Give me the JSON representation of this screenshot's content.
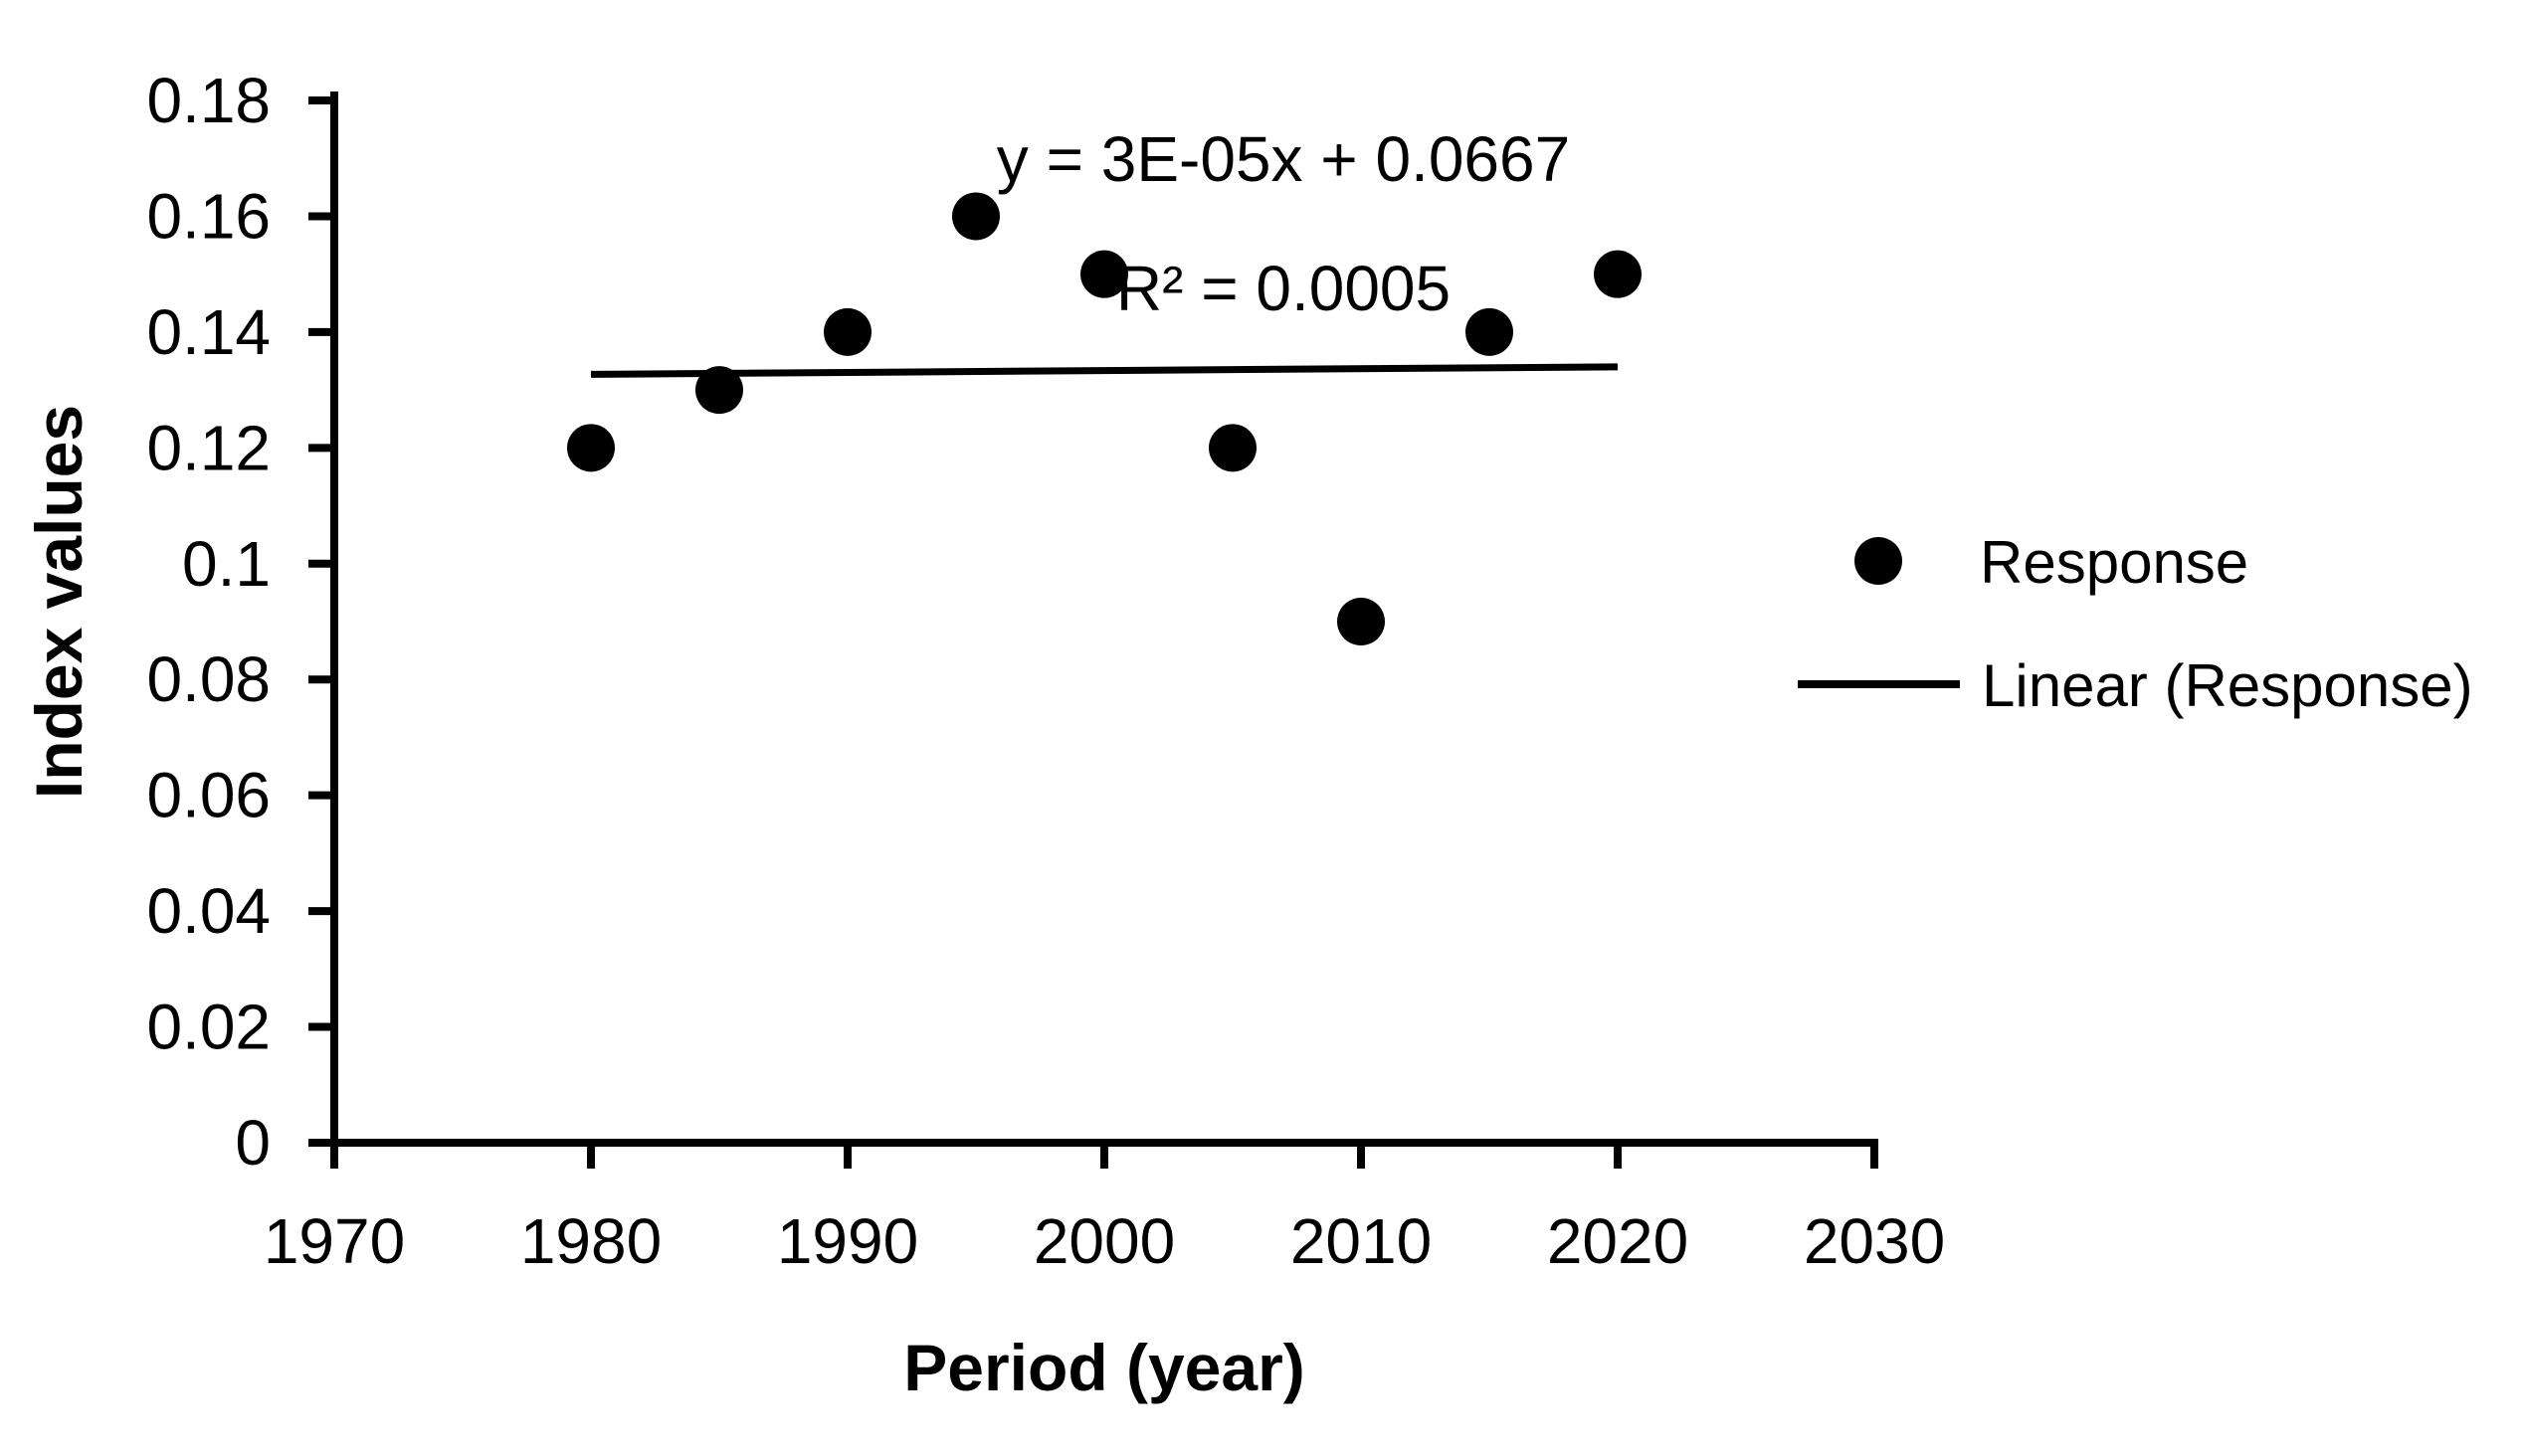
{
  "colors": {
    "foreground": "#000000",
    "background": "#ffffff"
  },
  "chart_data": {
    "type": "scatter",
    "title": "",
    "xlabel": "Period (year)",
    "ylabel": "Index values",
    "x": [
      1980,
      1985,
      1990,
      1995,
      2000,
      2005,
      2010,
      2015,
      2020
    ],
    "series": [
      {
        "name": "Response",
        "type": "scatter",
        "marker": "filled-circle",
        "color": "#000000",
        "values": [
          0.12,
          0.13,
          0.14,
          0.16,
          0.15,
          0.12,
          0.09,
          0.14,
          0.15
        ]
      },
      {
        "name": "Linear (Response)",
        "type": "line",
        "color": "#000000",
        "trend_x": [
          1980,
          2020
        ],
        "trend_y": [
          0.1327,
          0.134
        ]
      }
    ],
    "xlim": [
      1970,
      2030
    ],
    "ylim": [
      0,
      0.18
    ],
    "x_ticks": [
      "1970",
      "1980",
      "1990",
      "2000",
      "2010",
      "2020",
      "2030"
    ],
    "y_ticks": [
      "0.18",
      "0.16",
      "0.14",
      "0.12",
      "0.1",
      "0.08",
      "0.06",
      "0.04",
      "0.02",
      "0"
    ],
    "grid": false,
    "legend_position": "right",
    "annotation_lines": [
      "y = 3E-05x + 0.0667",
      "R² = 0.0005"
    ]
  },
  "legend": {
    "items": [
      {
        "label": "Response",
        "marker": "filled-circle"
      },
      {
        "label": "Linear (Response)",
        "marker": "line"
      }
    ]
  }
}
